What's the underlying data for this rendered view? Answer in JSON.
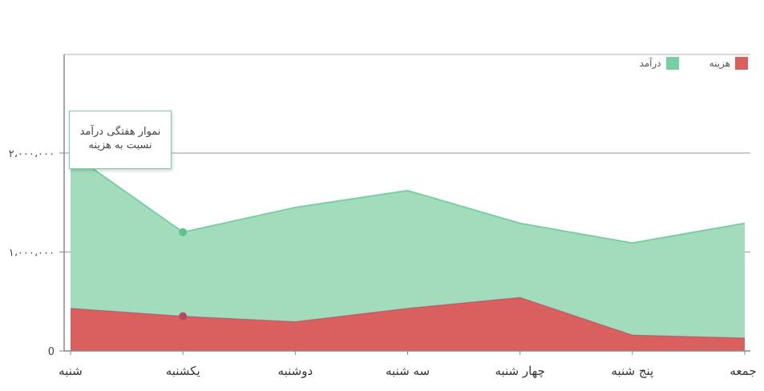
{
  "chart_data": {
    "type": "area",
    "categories": [
      "شنبه",
      "یکشنبه",
      "دوشنبه",
      "سه شنبه",
      "چهار شنبه",
      "پنج شنبه",
      "جمعه"
    ],
    "series": [
      {
        "name": "درآمد",
        "color": "#78d0a2",
        "values": [
          2000000,
          1200000,
          1450000,
          1620000,
          1290000,
          1090000,
          1290000
        ]
      },
      {
        "name": "هزینه",
        "color": "#d9605f",
        "values": [
          430000,
          350000,
          295000,
          430000,
          540000,
          160000,
          130000
        ]
      }
    ],
    "y_ticks": [
      {
        "value": 0,
        "label": "0"
      },
      {
        "value": 1000000,
        "label": "۱،۰۰۰،۰۰۰"
      },
      {
        "value": 2000000,
        "label": "۲،۰۰۰،۰۰۰"
      }
    ],
    "ylim": [
      0,
      3000000
    ],
    "grid": true,
    "legend_position": "top-right",
    "highlight_index": 1
  },
  "tooltip": {
    "line1": "نموار هفتگی درآمد",
    "line2": "نسبت به هزینه"
  },
  "colors": {
    "income": "#78d0a2",
    "income_fill": "#a3dcbd",
    "expense": "#d9605f",
    "axis": "#888888",
    "grid": "#9a9a9a"
  }
}
